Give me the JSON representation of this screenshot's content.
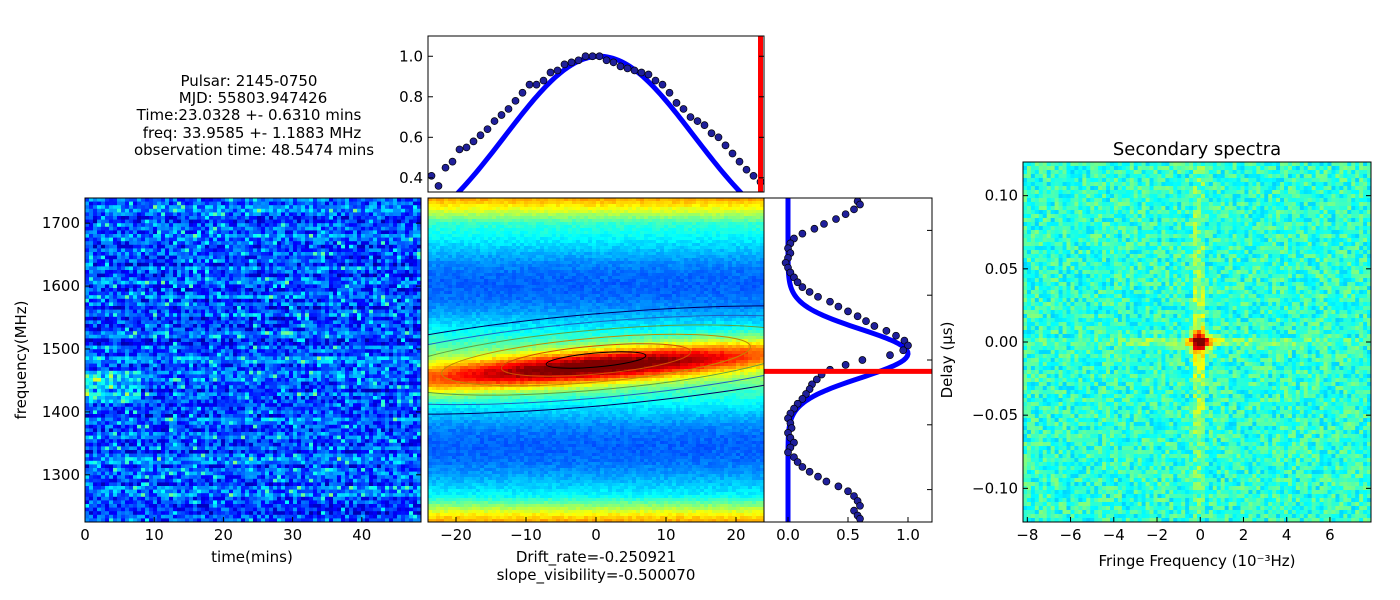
{
  "info_block": {
    "pulsar": "Pulsar: 2145-0750",
    "mjd": "MJD: 55803.947426",
    "time": "Time:23.0328 +- 0.6310 mins",
    "freq": "freq: 33.9585 +- 1.1883 MHz",
    "obs_time": "observation time: 48.5474 mins"
  },
  "colors": {
    "fit_curve": "#0000ff",
    "marker_line": "#ff0000",
    "point_fill": "#1f1f9a",
    "colormap": "jet"
  },
  "chart_data": [
    {
      "id": "dynamic_spectrum",
      "type": "heatmap",
      "title": "",
      "xlabel": "time(mins)",
      "ylabel": "frequency(MHz)",
      "xlim": [
        0,
        48.55
      ],
      "ylim": [
        1225,
        1740
      ],
      "xticks": [
        "0",
        "10",
        "20",
        "30",
        "40"
      ],
      "yticks": [
        "1300",
        "1400",
        "1500",
        "1600",
        "1700"
      ],
      "colormap": "jet",
      "grid": false
    },
    {
      "id": "acf_2d",
      "type": "heatmap",
      "title": "",
      "xlabel": "Drift_rate=-0.250921",
      "xlabel2": "slope_visibility=-0.500070",
      "xlim": [
        -24,
        24
      ],
      "xticks": [
        "−20",
        "−10",
        "0",
        "10",
        "20"
      ],
      "colormap": "jet",
      "contours": "elliptical, centered at lag 0, tilted",
      "grid": false
    },
    {
      "id": "acf_time_cut",
      "type": "scatter",
      "title": "",
      "xlim": [
        -24,
        24
      ],
      "ylim": [
        0.33,
        1.1
      ],
      "yticks": [
        "0.4",
        "0.6",
        "0.8",
        "1.0"
      ],
      "points": {
        "x": [
          -23.5,
          -22.5,
          -21.5,
          -20.5,
          -19.5,
          -18.5,
          -17.5,
          -16.5,
          -15.5,
          -14.5,
          -13.5,
          -12.5,
          -11.5,
          -10.5,
          -9.5,
          -8.5,
          -7.5,
          -6.5,
          -5.5,
          -4.5,
          -3.5,
          -2.5,
          -1.5,
          -0.5,
          0.5,
          1.5,
          2.5,
          3.5,
          4.5,
          5.5,
          6.5,
          7.5,
          8.5,
          9.5,
          10.5,
          11.5,
          12.5,
          13.5,
          14.5,
          15.5,
          16.5,
          17.5,
          18.5,
          19.5,
          20.5,
          21.5,
          22.5,
          23.5
        ],
        "y": [
          0.41,
          0.36,
          0.45,
          0.48,
          0.54,
          0.55,
          0.58,
          0.61,
          0.64,
          0.68,
          0.71,
          0.74,
          0.78,
          0.82,
          0.86,
          0.86,
          0.88,
          0.92,
          0.93,
          0.96,
          0.97,
          0.98,
          1.0,
          1.0,
          1.0,
          0.98,
          0.97,
          0.95,
          0.94,
          0.93,
          0.92,
          0.91,
          0.88,
          0.86,
          0.82,
          0.77,
          0.74,
          0.7,
          0.68,
          0.66,
          0.62,
          0.6,
          0.56,
          0.52,
          0.48,
          0.44,
          0.41,
          0.38
        ]
      },
      "fit": {
        "type": "gaussian",
        "center": 0.5,
        "amplitude": 1.0,
        "sigma": 13.5
      },
      "marker_x": 23.5,
      "grid": false
    },
    {
      "id": "acf_freq_cut",
      "type": "scatter",
      "title": "",
      "xlim": [
        -0.2,
        1.2
      ],
      "xticks": [
        "0.0",
        "0.5",
        "1.0"
      ],
      "ylim": [
        -10,
        10
      ],
      "ylabel": "Delay (μs)",
      "points": {
        "y": [
          9.8,
          9.6,
          9.3,
          9.0,
          8.7,
          8.4,
          8.1,
          7.8,
          7.5,
          7.2,
          6.9,
          6.6,
          6.3,
          6.0,
          5.7,
          5.4,
          5.1,
          4.8,
          4.5,
          4.2,
          3.9,
          3.6,
          3.3,
          3.0,
          2.7,
          2.4,
          2.1,
          1.8,
          1.5,
          1.2,
          0.9,
          0.6,
          0.3,
          0.0,
          -0.3,
          -0.6,
          -0.9,
          -1.2,
          -1.5,
          -1.8,
          -2.1,
          -2.4,
          -2.7,
          -3.0,
          -3.3,
          -3.6,
          -3.9,
          -4.2,
          -4.5,
          -4.8,
          -5.1,
          -5.4,
          -5.7,
          -6.0,
          -6.3,
          -6.6,
          -6.9,
          -7.2,
          -7.5,
          -7.8,
          -8.1,
          -8.4,
          -8.7,
          -9.0,
          -9.3,
          -9.6,
          -9.8
        ],
        "x": [
          0.58,
          0.6,
          0.55,
          0.48,
          0.4,
          0.3,
          0.22,
          0.12,
          0.05,
          0.02,
          0.0,
          0.02,
          0.0,
          -0.02,
          0.0,
          0.02,
          0.05,
          0.08,
          0.12,
          0.18,
          0.25,
          0.35,
          0.42,
          0.5,
          0.58,
          0.65,
          0.72,
          0.82,
          0.9,
          0.97,
          1.0,
          0.96,
          0.85,
          0.62,
          0.48,
          0.35,
          0.28,
          0.24,
          0.2,
          0.18,
          0.15,
          0.12,
          0.08,
          0.05,
          0.02,
          0.0,
          0.02,
          0.03,
          0.0,
          0.02,
          0.05,
          0.02,
          0.0,
          0.05,
          0.08,
          0.12,
          0.18,
          0.25,
          0.32,
          0.42,
          0.5,
          0.55,
          0.58,
          0.6,
          0.55,
          0.58,
          0.6
        ]
      },
      "fit": {
        "type": "gaussian",
        "center": 0.4,
        "amplitude": 1.0,
        "sigma": 1.5
      },
      "marker_y": -0.7,
      "grid": false
    },
    {
      "id": "secondary_spectra",
      "type": "heatmap",
      "title": "Secondary spectra",
      "xlabel": "Fringe Frequency (10⁻³Hz)",
      "ylabel": "Delay (μs)",
      "xlim": [
        -8.2,
        7.9
      ],
      "ylim": [
        -0.123,
        0.123
      ],
      "xticks": [
        "−8",
        "−6",
        "−4",
        "−2",
        "0",
        "2",
        "4",
        "6"
      ],
      "yticks": [
        "−0.10",
        "−0.05",
        "0.00",
        "0.05",
        "0.10"
      ],
      "colormap": "jet",
      "grid": false
    }
  ]
}
